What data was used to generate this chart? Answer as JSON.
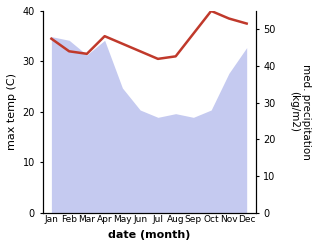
{
  "months": [
    "Jan",
    "Feb",
    "Mar",
    "Apr",
    "May",
    "Jun",
    "Jul",
    "Aug",
    "Sep",
    "Oct",
    "Nov",
    "Dec"
  ],
  "month_indices": [
    0,
    1,
    2,
    3,
    4,
    5,
    6,
    7,
    8,
    9,
    10,
    11
  ],
  "temperature": [
    34.5,
    32.0,
    31.5,
    35.0,
    33.5,
    32.0,
    30.5,
    31.0,
    35.5,
    40.0,
    38.5,
    37.5
  ],
  "precipitation_right": [
    48,
    47,
    43,
    47,
    34,
    28,
    26,
    27,
    26,
    28,
    38,
    45
  ],
  "temp_color": "#c0392b",
  "precip_fill_color": "#c5caf0",
  "ylim_left": [
    0,
    40
  ],
  "ylim_right": [
    0,
    55
  ],
  "yticks_left": [
    0,
    10,
    20,
    30,
    40
  ],
  "yticks_right": [
    0,
    10,
    20,
    30,
    40,
    50
  ],
  "xlabel": "date (month)",
  "ylabel_left": "max temp (C)",
  "ylabel_right": "med. precipitation\n(kg/m2)",
  "bg_color": "#ffffff"
}
